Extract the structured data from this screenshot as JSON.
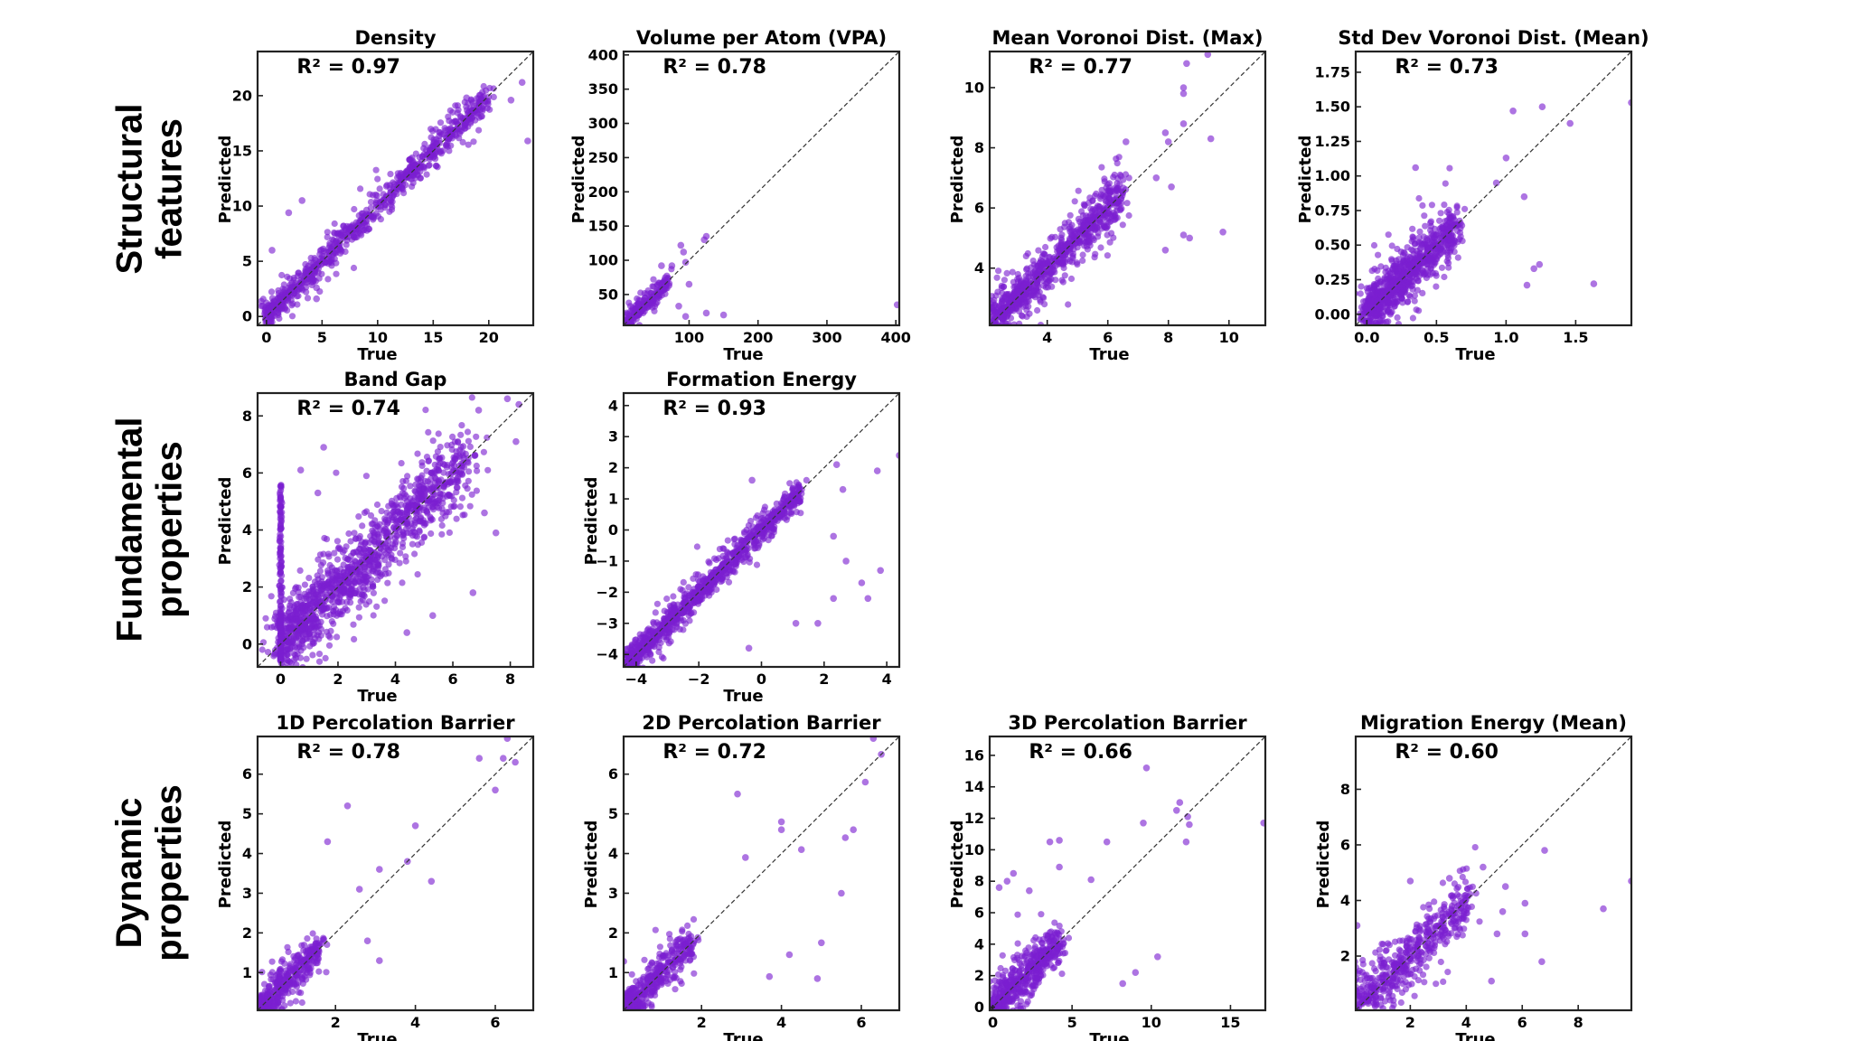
{
  "row_labels": [
    {
      "line1": "Structural",
      "line2": "features"
    },
    {
      "line1": "Fundamental",
      "line2": "properties"
    },
    {
      "line1": "Dynamic",
      "line2": "properties"
    }
  ],
  "colors": {
    "point": "#7a1fd0",
    "diagonal": "#333333",
    "frame": "#222222"
  },
  "chart_data": [
    {
      "type": "scatter",
      "row": 0,
      "col": 0,
      "title": "Density",
      "r2_label": "R² = 0.97",
      "r2": 0.97,
      "xlabel": "True",
      "ylabel": "Predicted",
      "xlim": [
        -0.8,
        24
      ],
      "ylim": [
        -0.8,
        24
      ],
      "xticks": [
        0,
        5,
        10,
        15,
        20
      ],
      "yticks": [
        0,
        5,
        10,
        15,
        20
      ],
      "reference_line": "y = x (dashed)",
      "cluster": {
        "x_range": [
          0,
          20
        ],
        "spread": 0.7,
        "density": "high",
        "n_approx": 1400
      },
      "outliers": [
        [
          23.0,
          21.2
        ],
        [
          23.5,
          15.9
        ],
        [
          3.2,
          10.5
        ],
        [
          2.0,
          9.4
        ],
        [
          0.5,
          6.0
        ],
        [
          4.5,
          2.6
        ],
        [
          4.5,
          1.6
        ],
        [
          13.2,
          13.9
        ],
        [
          18.0,
          19.8
        ],
        [
          22.0,
          19.6
        ]
      ]
    },
    {
      "type": "scatter",
      "row": 0,
      "col": 1,
      "title": "Volume per Atom (VPA)",
      "r2_label": "R² = 0.78",
      "r2": 0.78,
      "xlabel": "True",
      "ylabel": "Predicted",
      "xlim": [
        5,
        405
      ],
      "ylim": [
        5,
        405
      ],
      "xticks": [
        100,
        200,
        300,
        400
      ],
      "yticks": [
        50,
        100,
        150,
        200,
        250,
        300,
        350,
        400
      ],
      "reference_line": "y = x (dashed)",
      "cluster": {
        "x_range": [
          8,
          70
        ],
        "spread": 8,
        "density": "medium",
        "n_approx": 400
      },
      "outliers": [
        [
          125,
          135
        ],
        [
          122,
          130
        ],
        [
          88,
          122
        ],
        [
          92,
          112
        ],
        [
          95,
          97
        ],
        [
          100,
          65
        ],
        [
          85,
          33
        ],
        [
          150,
          20
        ],
        [
          125,
          23
        ],
        [
          95,
          18
        ],
        [
          75,
          92
        ],
        [
          60,
          92
        ],
        [
          402,
          35
        ]
      ]
    },
    {
      "type": "scatter",
      "row": 0,
      "col": 2,
      "title": "Mean Voronoi Dist. (Max)",
      "r2_label": "R² = 0.77",
      "r2": 0.77,
      "xlabel": "True",
      "ylabel": "Predicted",
      "xlim": [
        2.1,
        11.2
      ],
      "ylim": [
        2.1,
        11.2
      ],
      "xticks": [
        4,
        6,
        8,
        10
      ],
      "yticks": [
        4,
        6,
        8,
        10
      ],
      "reference_line": "y = x (dashed)",
      "cluster": {
        "x_range": [
          2.2,
          6.5
        ],
        "spread": 0.4,
        "density": "high",
        "n_approx": 1500
      },
      "outliers": [
        [
          8.6,
          10.8
        ],
        [
          8.5,
          10.0
        ],
        [
          8.5,
          9.8
        ],
        [
          9.3,
          11.1
        ],
        [
          8.5,
          8.8
        ],
        [
          7.9,
          8.5
        ],
        [
          8.0,
          8.2
        ],
        [
          9.4,
          8.3
        ],
        [
          9.8,
          5.2
        ],
        [
          8.5,
          5.1
        ],
        [
          8.7,
          5.0
        ],
        [
          7.9,
          4.6
        ],
        [
          6.6,
          8.2
        ],
        [
          7.6,
          7.0
        ],
        [
          8.1,
          6.7
        ]
      ]
    },
    {
      "type": "scatter",
      "row": 0,
      "col": 3,
      "title": "Std Dev Voronoi Dist. (Mean)",
      "r2_label": "R² = 0.73",
      "r2": 0.73,
      "xlabel": "True",
      "ylabel": "Predicted",
      "xlim": [
        -0.08,
        1.9
      ],
      "ylim": [
        -0.08,
        1.9
      ],
      "xticks": [
        0.0,
        0.5,
        1.0,
        1.5
      ],
      "yticks": [
        0.0,
        0.25,
        0.5,
        0.75,
        1.0,
        1.25,
        1.5,
        1.75
      ],
      "tick_format": {
        "x": 1,
        "y": 2
      },
      "reference_line": "y = x (dashed)",
      "cluster": {
        "x_range": [
          0,
          0.65
        ],
        "spread": 0.1,
        "density": "high",
        "n_approx": 1500
      },
      "outliers": [
        [
          1.05,
          1.47
        ],
        [
          1.26,
          1.5
        ],
        [
          1.46,
          1.38
        ],
        [
          1.0,
          1.13
        ],
        [
          1.13,
          0.85
        ],
        [
          1.63,
          0.22
        ],
        [
          1.15,
          0.21
        ],
        [
          1.24,
          0.36
        ],
        [
          1.2,
          0.33
        ],
        [
          0.35,
          1.06
        ],
        [
          0.93,
          0.95
        ],
        [
          1.9,
          1.53
        ]
      ]
    },
    {
      "type": "scatter",
      "row": 1,
      "col": 0,
      "title": "Band Gap",
      "r2_label": "R² = 0.74",
      "r2": 0.74,
      "xlabel": "True",
      "ylabel": "Predicted",
      "xlim": [
        -0.8,
        8.8
      ],
      "ylim": [
        -0.8,
        8.8
      ],
      "xticks": [
        0,
        2,
        4,
        6,
        8
      ],
      "yticks": [
        0,
        2,
        4,
        6,
        8
      ],
      "reference_line": "y = x (dashed)",
      "cluster": {
        "x_range": [
          0,
          6.5
        ],
        "spread": 0.7,
        "density": "very high",
        "n_approx": 2200
      },
      "special": "vertical band of points at True = 0 spanning Predicted -0.8 to 5.8",
      "outliers": [
        [
          1.5,
          6.9
        ],
        [
          0.7,
          6.1
        ],
        [
          7.9,
          8.6
        ],
        [
          8.3,
          8.4
        ],
        [
          8.2,
          7.1
        ],
        [
          7.5,
          3.9
        ],
        [
          6.7,
          1.8
        ],
        [
          4.4,
          0.4
        ],
        [
          5.3,
          1.0
        ],
        [
          1.3,
          5.3
        ],
        [
          7.1,
          4.6
        ],
        [
          6.9,
          8.2
        ]
      ]
    },
    {
      "type": "scatter",
      "row": 1,
      "col": 1,
      "title": "Formation Energy",
      "r2_label": "R² = 0.93",
      "r2": 0.93,
      "xlabel": "True",
      "ylabel": "Predicted",
      "xlim": [
        -4.4,
        4.4
      ],
      "ylim": [
        -4.4,
        4.4
      ],
      "xticks": [
        -4,
        -2,
        0,
        2,
        4
      ],
      "yticks": [
        -4,
        -3,
        -2,
        -1,
        0,
        1,
        2,
        3,
        4
      ],
      "reference_line": "y = x (dashed)",
      "cluster": {
        "x_range": [
          -4.3,
          1.3
        ],
        "spread": 0.22,
        "density": "very high",
        "n_approx": 1800
      },
      "outliers": [
        [
          3.7,
          1.9
        ],
        [
          2.4,
          2.1
        ],
        [
          2.6,
          1.3
        ],
        [
          3.8,
          -1.3
        ],
        [
          3.2,
          -1.7
        ],
        [
          3.4,
          -2.2
        ],
        [
          2.3,
          -2.2
        ],
        [
          1.8,
          -3.0
        ],
        [
          1.1,
          -3.0
        ],
        [
          -0.4,
          -3.8
        ],
        [
          2.3,
          -0.2
        ],
        [
          2.7,
          -1.0
        ],
        [
          -0.3,
          1.6
        ],
        [
          4.4,
          2.4
        ]
      ]
    },
    {
      "type": "scatter",
      "row": 2,
      "col": 0,
      "title": "1D Percolation Barrier",
      "r2_label": "R² = 0.78",
      "r2": 0.78,
      "xlabel": "True",
      "ylabel": "Predicted",
      "xlim": [
        0.05,
        6.95
      ],
      "ylim": [
        0.05,
        6.95
      ],
      "xticks": [
        2,
        4,
        6
      ],
      "yticks": [
        1,
        2,
        3,
        4,
        5,
        6
      ],
      "reference_line": "y = x (dashed)",
      "cluster": {
        "x_range": [
          0.05,
          1.6
        ],
        "spread": 0.25,
        "density": "high",
        "n_approx": 700
      },
      "outliers": [
        [
          2.3,
          5.2
        ],
        [
          1.8,
          4.3
        ],
        [
          4.0,
          4.7
        ],
        [
          4.4,
          3.3
        ],
        [
          3.1,
          3.6
        ],
        [
          3.8,
          3.8
        ],
        [
          6.2,
          6.4
        ],
        [
          6.5,
          6.3
        ],
        [
          6.0,
          5.6
        ],
        [
          5.6,
          6.4
        ],
        [
          6.3,
          6.9
        ],
        [
          3.1,
          1.3
        ],
        [
          2.6,
          3.1
        ],
        [
          2.8,
          1.8
        ]
      ]
    },
    {
      "type": "scatter",
      "row": 2,
      "col": 1,
      "title": "2D Percolation Barrier",
      "r2_label": "R² = 0.72",
      "r2": 0.72,
      "xlabel": "True",
      "ylabel": "Predicted",
      "xlim": [
        0.05,
        6.95
      ],
      "ylim": [
        0.05,
        6.95
      ],
      "xticks": [
        2,
        4,
        6
      ],
      "yticks": [
        1,
        2,
        3,
        4,
        5,
        6
      ],
      "reference_line": "y = x (dashed)",
      "cluster": {
        "x_range": [
          0.05,
          1.8
        ],
        "spread": 0.3,
        "density": "high",
        "n_approx": 700
      },
      "outliers": [
        [
          2.9,
          5.5
        ],
        [
          4.0,
          4.8
        ],
        [
          4.0,
          4.6
        ],
        [
          5.6,
          4.4
        ],
        [
          5.8,
          4.6
        ],
        [
          5.5,
          3.0
        ],
        [
          4.9,
          0.85
        ],
        [
          5.0,
          1.75
        ],
        [
          3.7,
          0.9
        ],
        [
          4.2,
          1.45
        ],
        [
          6.1,
          5.8
        ],
        [
          6.5,
          6.5
        ],
        [
          6.3,
          6.9
        ],
        [
          4.5,
          4.1
        ],
        [
          3.1,
          3.9
        ]
      ]
    },
    {
      "type": "scatter",
      "row": 2,
      "col": 2,
      "title": "3D Percolation Barrier",
      "r2_label": "R² = 0.66",
      "r2": 0.66,
      "xlabel": "True",
      "ylabel": "Predicted",
      "xlim": [
        -0.2,
        17.2
      ],
      "ylim": [
        -0.2,
        17.2
      ],
      "xticks": [
        0,
        5,
        10,
        15
      ],
      "yticks": [
        0,
        2,
        4,
        6,
        8,
        10,
        12,
        14,
        16
      ],
      "reference_line": "y = x (dashed)",
      "cluster": {
        "x_range": [
          0,
          4.2
        ],
        "spread": 0.8,
        "density": "high",
        "n_approx": 900
      },
      "outliers": [
        [
          9.7,
          15.2
        ],
        [
          11.8,
          13.0
        ],
        [
          12.3,
          12.1
        ],
        [
          12.4,
          11.6
        ],
        [
          11.6,
          12.5
        ],
        [
          12.2,
          10.5
        ],
        [
          9.5,
          11.7
        ],
        [
          3.6,
          10.5
        ],
        [
          4.2,
          10.6
        ],
        [
          0.9,
          8.0
        ],
        [
          1.3,
          8.5
        ],
        [
          2.3,
          7.4
        ],
        [
          0.4,
          7.6
        ],
        [
          7.2,
          10.5
        ],
        [
          8.2,
          1.5
        ],
        [
          10.4,
          3.2
        ],
        [
          9.0,
          2.2
        ],
        [
          17.1,
          11.7
        ],
        [
          6.2,
          8.1
        ],
        [
          4.2,
          8.9
        ]
      ]
    },
    {
      "type": "scatter",
      "row": 2,
      "col": 3,
      "title": "Migration Energy (Mean)",
      "r2_label": "R² = 0.60",
      "r2": 0.6,
      "xlabel": "True",
      "ylabel": "Predicted",
      "xlim": [
        0.05,
        9.9
      ],
      "ylim": [
        0.05,
        9.9
      ],
      "xticks": [
        2,
        4,
        6,
        8
      ],
      "yticks": [
        2,
        4,
        6,
        8
      ],
      "reference_line": "y = x (dashed)",
      "cluster": {
        "x_range": [
          0.05,
          4.2
        ],
        "spread": 0.55,
        "density": "high",
        "n_approx": 900
      },
      "outliers": [
        [
          6.8,
          5.8
        ],
        [
          8.9,
          3.7
        ],
        [
          6.7,
          1.8
        ],
        [
          6.1,
          3.9
        ],
        [
          6.1,
          2.8
        ],
        [
          5.3,
          3.6
        ],
        [
          5.1,
          2.8
        ],
        [
          5.4,
          4.5
        ],
        [
          4.9,
          1.1
        ],
        [
          4.6,
          5.2
        ],
        [
          2.0,
          4.7
        ],
        [
          3.4,
          4.8
        ],
        [
          0.1,
          3.1
        ],
        [
          9.9,
          4.7
        ]
      ]
    }
  ]
}
